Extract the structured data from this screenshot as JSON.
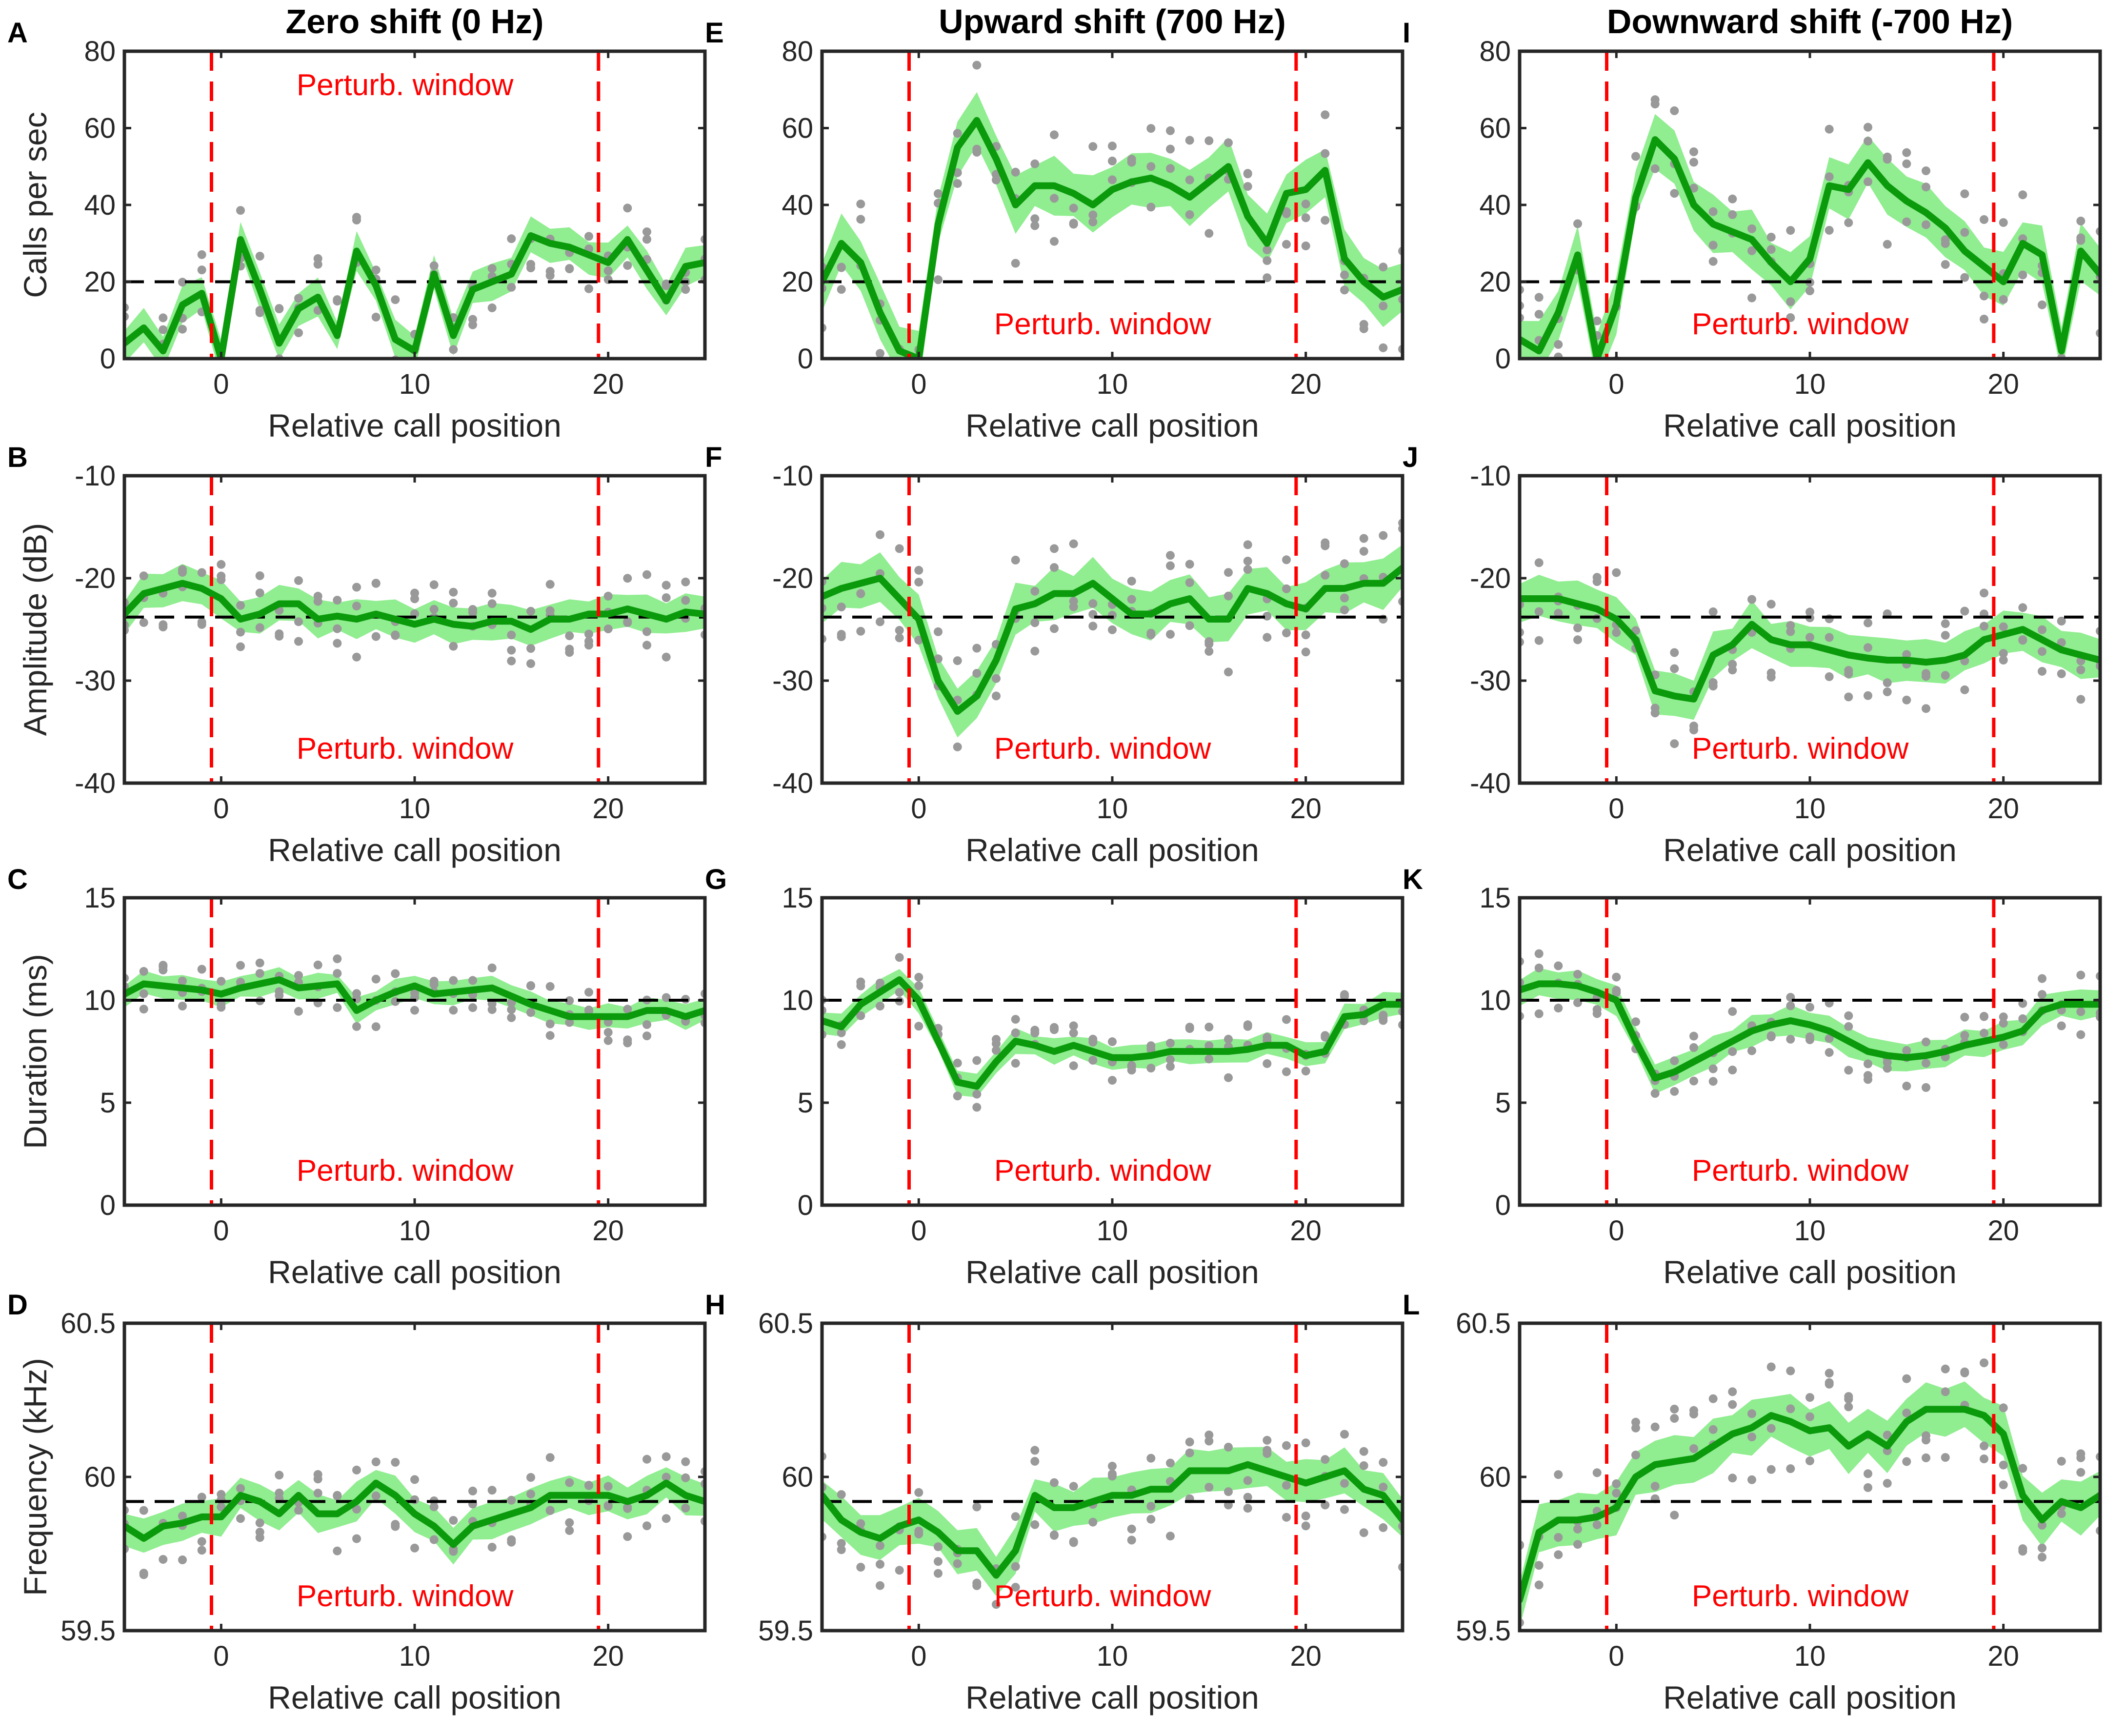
{
  "colors": {
    "mean": "#0b9a0b",
    "band": "#7dea7d",
    "dots": "#999999",
    "window": "#ff0000",
    "baseline": "#000000"
  },
  "chart_data": {
    "type": "line",
    "columns": [
      {
        "title": "Zero shift (0 Hz)"
      },
      {
        "title": "Upward shift (700 Hz)"
      },
      {
        "title": "Downward shift (-700 Hz)"
      }
    ],
    "common": {
      "xlabel": "Relative call position",
      "xlim": [
        -5,
        25
      ],
      "xticks": [
        0,
        10,
        20
      ],
      "window_label": "Perturb. window",
      "window_bounds": [
        -0.5,
        19.5
      ]
    },
    "rows": [
      {
        "ylabel": "Calls per sec",
        "ylim": [
          0,
          80
        ],
        "yticks": [
          0,
          20,
          40,
          60,
          80
        ],
        "ytick_labels": [
          "0",
          "20",
          "40",
          "60",
          "80"
        ],
        "baseline": 20
      },
      {
        "ylabel": "Amplitude (dB)",
        "ylim": [
          -40,
          -10
        ],
        "yticks": [
          -40,
          -30,
          -20,
          -10
        ],
        "ytick_labels": [
          "-40",
          "-30",
          "-20",
          "-10"
        ],
        "baseline": -23.8
      },
      {
        "ylabel": "Duration (ms)",
        "ylim": [
          0,
          15
        ],
        "yticks": [
          0,
          5,
          10,
          15
        ],
        "ytick_labels": [
          "0",
          "5",
          "10",
          "15"
        ],
        "baseline": 10
      },
      {
        "ylabel": "Frequency (kHz)",
        "ylim": [
          59.5,
          60.5
        ],
        "yticks": [
          59.5,
          60,
          60.5
        ],
        "ytick_labels": [
          "59.5",
          "60",
          "60.5"
        ],
        "baseline": 59.92
      }
    ],
    "x": [
      -5,
      -4,
      -3,
      -2,
      -1,
      0,
      1,
      2,
      3,
      4,
      5,
      6,
      7,
      8,
      9,
      10,
      11,
      12,
      13,
      14,
      15,
      16,
      17,
      18,
      19,
      20,
      21,
      22,
      23,
      24,
      25
    ],
    "panels": [
      {
        "letter": "A",
        "row": 0,
        "col": 0,
        "window_label_pos": "top",
        "mean": [
          4,
          8,
          2,
          14,
          17,
          0,
          31,
          18,
          4,
          13,
          16,
          6,
          28,
          19,
          5,
          2,
          22,
          6,
          18,
          20,
          22,
          32,
          30,
          29,
          27,
          25,
          31,
          23,
          15,
          24,
          25
        ],
        "band": 4
      },
      {
        "letter": "B",
        "row": 1,
        "col": 0,
        "window_label_pos": "bottom",
        "mean": [
          -23.5,
          -21.5,
          -21,
          -20.5,
          -21,
          -22,
          -24,
          -23.5,
          -22.5,
          -22.5,
          -24,
          -23.7,
          -24,
          -23.5,
          -24,
          -24.5,
          -24,
          -24.5,
          -24.7,
          -24.2,
          -24.2,
          -25,
          -24,
          -24,
          -23.5,
          -23.5,
          -23,
          -23.5,
          -24,
          -23.3,
          -23.5
        ],
        "band": 1.5
      },
      {
        "letter": "C",
        "row": 2,
        "col": 0,
        "window_label_pos": "bottom",
        "mean": [
          10.3,
          10.8,
          10.7,
          10.6,
          10.5,
          10.3,
          10.6,
          10.8,
          11,
          10.6,
          10.7,
          10.8,
          9.5,
          10,
          10.4,
          10.7,
          10.3,
          10.4,
          10.5,
          10.6,
          10.2,
          9.8,
          9.5,
          9.2,
          9.2,
          9.2,
          9.2,
          9.5,
          9.5,
          9.2,
          9.5
        ],
        "band": 0.5
      },
      {
        "letter": "D",
        "row": 3,
        "col": 0,
        "window_label_pos": "bottom",
        "mean": [
          59.84,
          59.8,
          59.84,
          59.85,
          59.87,
          59.87,
          59.94,
          59.92,
          59.88,
          59.94,
          59.88,
          59.88,
          59.92,
          59.98,
          59.94,
          59.88,
          59.84,
          59.78,
          59.84,
          59.86,
          59.88,
          59.9,
          59.94,
          59.94,
          59.94,
          59.94,
          59.92,
          59.94,
          59.98,
          59.94,
          59.92
        ],
        "band": 0.05
      },
      {
        "letter": "E",
        "row": 0,
        "col": 1,
        "window_label_pos": "bottom",
        "mean": [
          20,
          30,
          25,
          12,
          2,
          0,
          35,
          55,
          62,
          52,
          40,
          45,
          45,
          43,
          40,
          44,
          46,
          47,
          45,
          42,
          46,
          50,
          37,
          30,
          43,
          44,
          49,
          26,
          20,
          16,
          18
        ],
        "band": 6
      },
      {
        "letter": "F",
        "row": 1,
        "col": 1,
        "window_label_pos": "bottom",
        "mean": [
          -21.8,
          -21,
          -20.5,
          -20,
          -22,
          -24,
          -30,
          -33,
          -31.5,
          -28,
          -23,
          -22.5,
          -21.5,
          -21.5,
          -20.5,
          -22,
          -23.5,
          -23.5,
          -22.5,
          -22,
          -24,
          -24,
          -21,
          -21.5,
          -22.5,
          -23,
          -21,
          -21,
          -20.5,
          -20.5,
          -19
        ],
        "band": 2
      },
      {
        "letter": "G",
        "row": 2,
        "col": 1,
        "window_label_pos": "bottom",
        "mean": [
          9,
          8.7,
          9.8,
          10.4,
          11,
          10,
          8,
          6,
          5.8,
          7,
          8,
          7.8,
          7.5,
          7.8,
          7.5,
          7.2,
          7.2,
          7.3,
          7.5,
          7.5,
          7.5,
          7.5,
          7.6,
          7.8,
          7.8,
          7.3,
          7.5,
          9.2,
          9.3,
          9.8,
          9.8
        ],
        "band": 0.5
      },
      {
        "letter": "H",
        "row": 3,
        "col": 1,
        "window_label_pos": "bottom",
        "mean": [
          59.94,
          59.86,
          59.82,
          59.8,
          59.84,
          59.86,
          59.82,
          59.76,
          59.76,
          59.68,
          59.76,
          59.94,
          59.9,
          59.9,
          59.92,
          59.94,
          59.94,
          59.96,
          59.96,
          60.02,
          60.02,
          60.02,
          60.04,
          60.02,
          60,
          59.98,
          60,
          60.02,
          59.96,
          59.94,
          59.86
        ],
        "band": 0.06
      },
      {
        "letter": "I",
        "row": 0,
        "col": 2,
        "window_label_pos": "bottom",
        "mean": [
          5,
          2,
          12,
          27,
          0,
          14,
          42,
          57,
          52,
          40,
          35,
          33,
          31,
          25,
          20,
          26,
          45,
          44,
          51,
          45,
          41,
          38,
          34,
          28,
          24,
          20,
          30,
          27,
          2,
          28,
          22
        ],
        "band": 6
      },
      {
        "letter": "J",
        "row": 1,
        "col": 2,
        "window_label_pos": "bottom",
        "mean": [
          -22,
          -22,
          -22,
          -22.5,
          -23,
          -24,
          -26,
          -31,
          -31.5,
          -31.8,
          -27.5,
          -26.5,
          -24.5,
          -26,
          -26.5,
          -26.5,
          -27,
          -27.5,
          -27.8,
          -28,
          -28,
          -28.2,
          -28,
          -27.5,
          -26,
          -25.5,
          -25,
          -26,
          -27,
          -27.5,
          -28
        ],
        "band": 1.8
      },
      {
        "letter": "K",
        "row": 2,
        "col": 2,
        "window_label_pos": "bottom",
        "mean": [
          10.5,
          10.8,
          10.8,
          10.7,
          10.4,
          10,
          8,
          6.2,
          6.5,
          7,
          7.5,
          8,
          8.5,
          8.8,
          9,
          8.8,
          8.5,
          8,
          7.5,
          7.3,
          7.2,
          7.3,
          7.5,
          7.8,
          8,
          8.2,
          8.5,
          9.5,
          9.8,
          9.8,
          9.8
        ],
        "band": 0.6
      },
      {
        "letter": "L",
        "row": 3,
        "col": 2,
        "window_label_pos": "bottom",
        "mean": [
          59.6,
          59.82,
          59.86,
          59.86,
          59.87,
          59.9,
          60,
          60.04,
          60.05,
          60.06,
          60.1,
          60.14,
          60.16,
          60.2,
          60.18,
          60.15,
          60.16,
          60.1,
          60.14,
          60.1,
          60.18,
          60.22,
          60.22,
          60.22,
          60.2,
          60.14,
          59.94,
          59.86,
          59.92,
          59.9,
          59.94
        ],
        "band": 0.07
      }
    ]
  }
}
